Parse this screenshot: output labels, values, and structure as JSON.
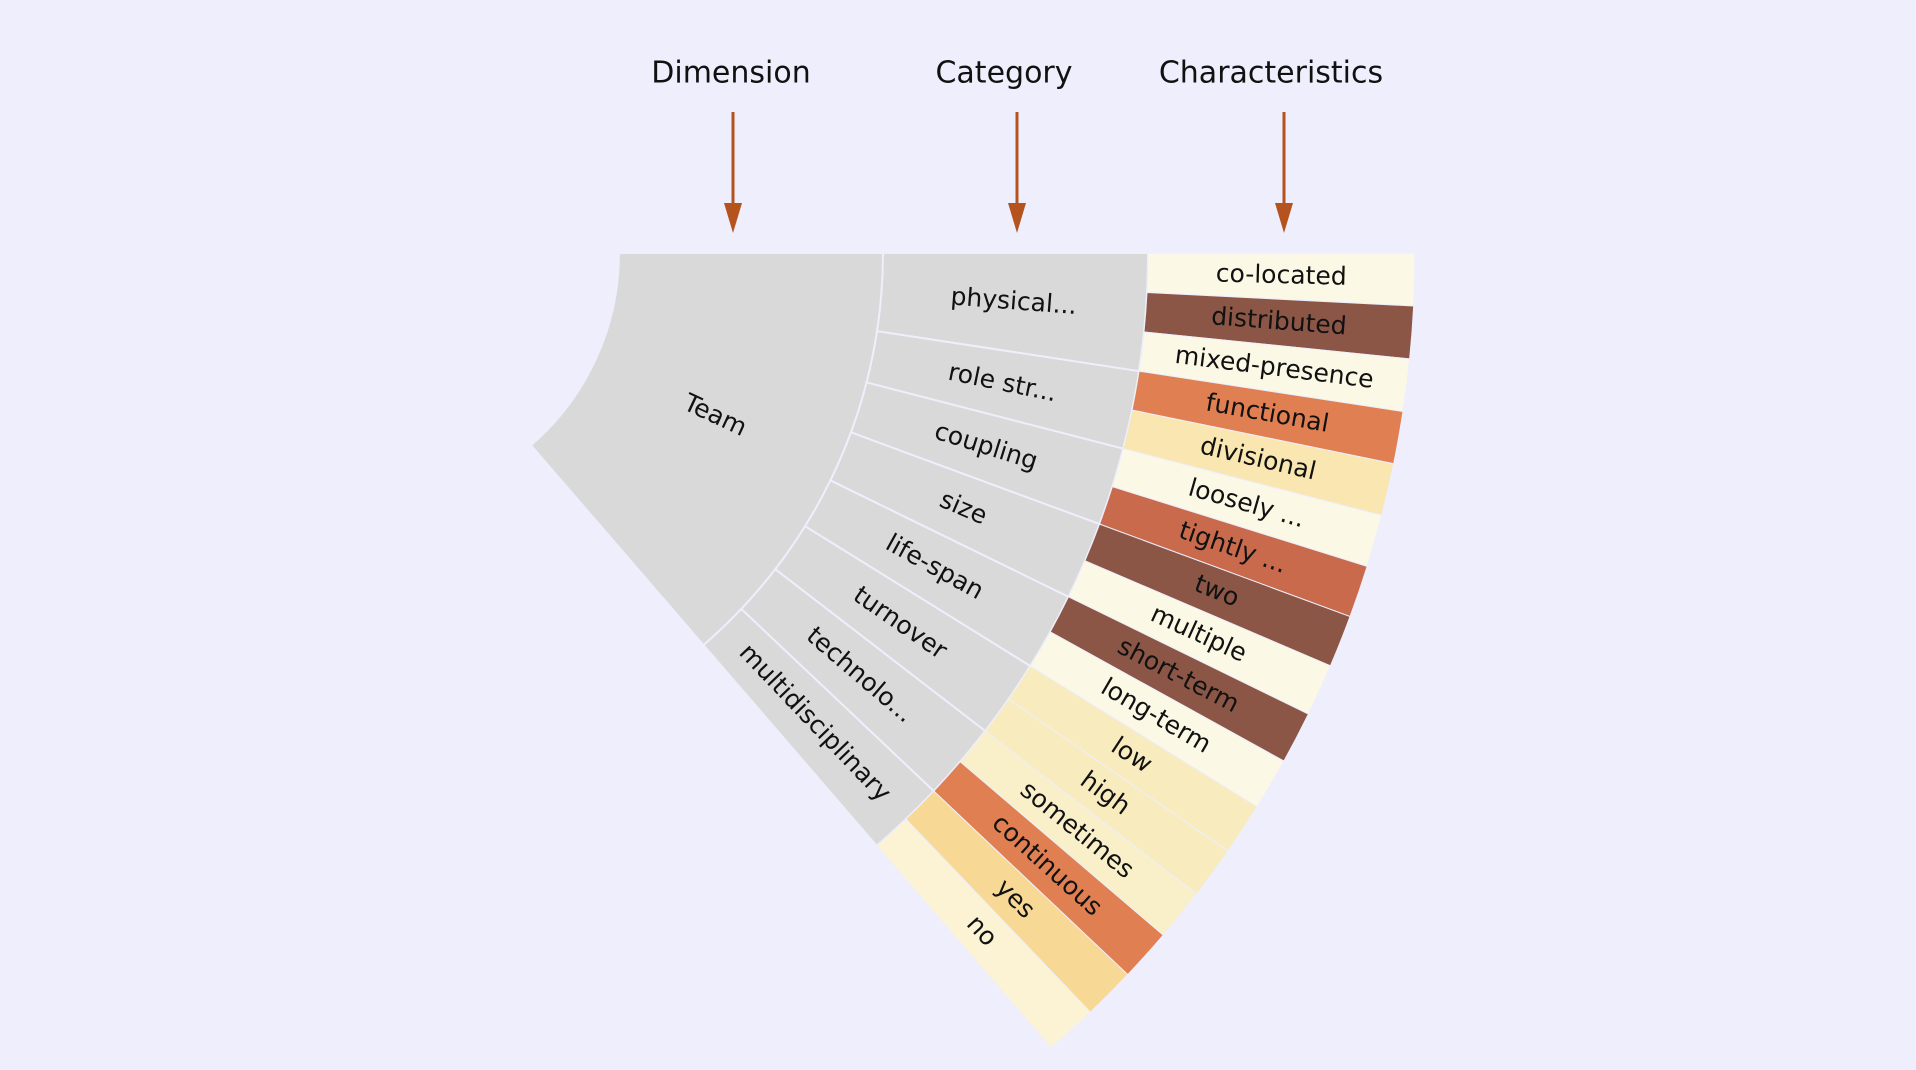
{
  "headers": [
    "Dimension",
    "Category",
    "Characteristics"
  ],
  "dimension": {
    "label": "Team",
    "categories": [
      {
        "label": "physical...",
        "characteristics": [
          {
            "label": "co-located",
            "color": "#fbf8e6"
          },
          {
            "label": "distributed",
            "color": "#8b5646"
          },
          {
            "label": "mixed-presence",
            "color": "#fbf8e6"
          }
        ]
      },
      {
        "label": "role str...",
        "characteristics": [
          {
            "label": "functional",
            "color": "#e07f52"
          },
          {
            "label": "divisional",
            "color": "#f9e6b0"
          }
        ]
      },
      {
        "label": "coupling",
        "characteristics": [
          {
            "label": "loosely ...",
            "color": "#fbf8e6"
          },
          {
            "label": "tightly ...",
            "color": "#c96a4c"
          }
        ]
      },
      {
        "label": "size",
        "characteristics": [
          {
            "label": "two",
            "color": "#8b5646"
          },
          {
            "label": "multiple",
            "color": "#fbf8e6"
          }
        ]
      },
      {
        "label": "life-span",
        "characteristics": [
          {
            "label": "short-term",
            "color": "#8b5646"
          },
          {
            "label": "long-term",
            "color": "#fbf8e6"
          }
        ]
      },
      {
        "label": "turnover",
        "characteristics": [
          {
            "label": "low",
            "color": "#f8ebbd"
          },
          {
            "label": "high",
            "color": "#f8ebbd"
          }
        ]
      },
      {
        "label": "technolo...",
        "characteristics": [
          {
            "label": "sometimes",
            "color": "#f9efc8"
          },
          {
            "label": "continuous",
            "color": "#e07f52"
          }
        ]
      },
      {
        "label": "multidisciplinary",
        "characteristics": [
          {
            "label": "yes",
            "color": "#f7d995"
          },
          {
            "label": "no",
            "color": "#fbf3d3"
          }
        ]
      }
    ]
  }
}
